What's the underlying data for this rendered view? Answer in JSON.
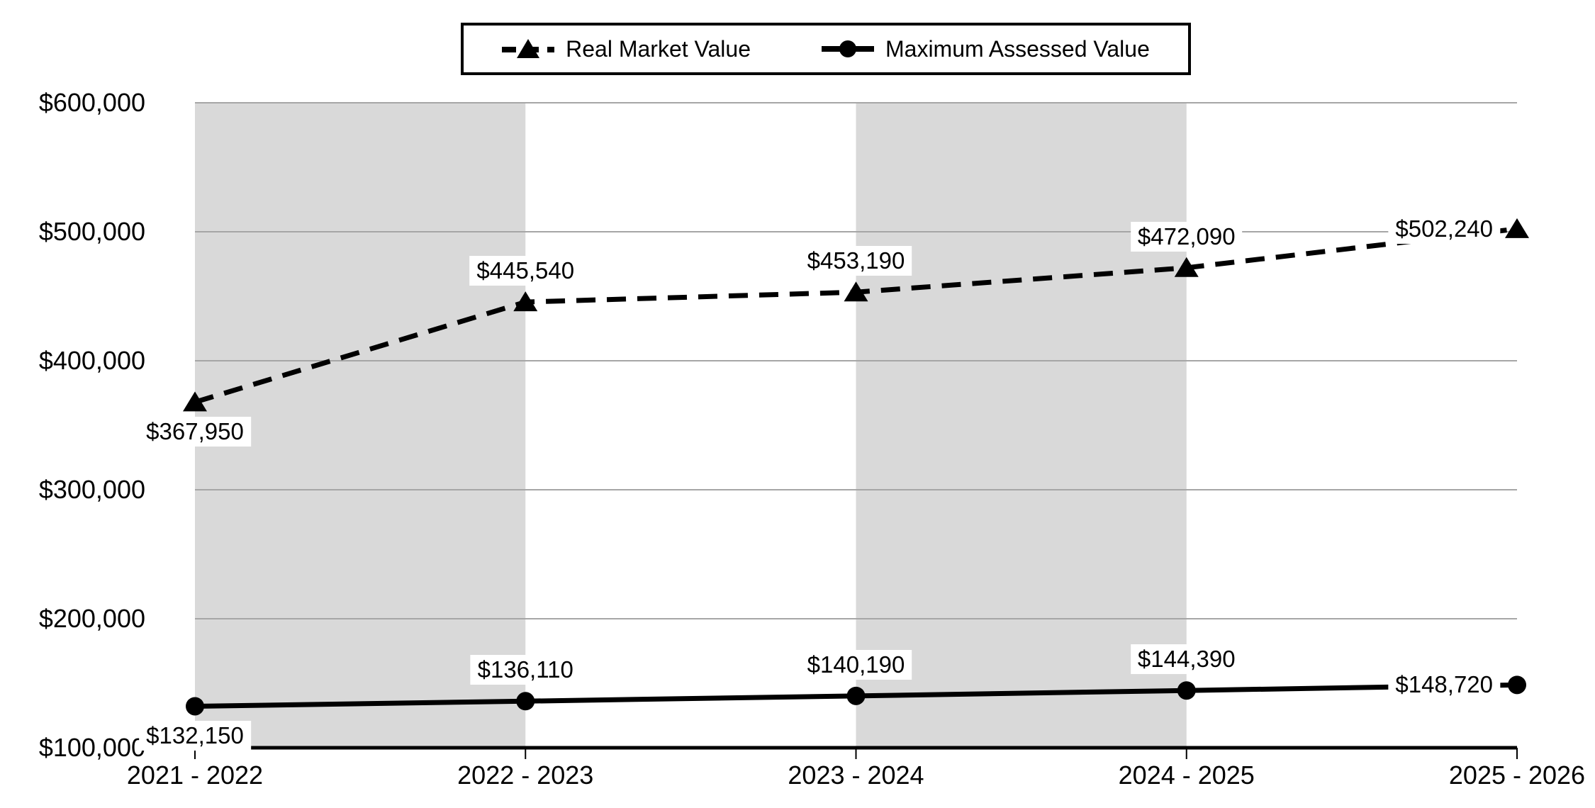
{
  "chart_data": {
    "type": "line",
    "categories": [
      "2021 - 2022",
      "2022 - 2023",
      "2023 - 2024",
      "2024 - 2025",
      "2025 - 2026"
    ],
    "series": [
      {
        "name": "Real Market Value",
        "line_style": "dashed",
        "marker": "triangle",
        "values": [
          367950,
          445540,
          453190,
          472090,
          502240
        ],
        "labels": [
          "$367,950",
          "$445,540",
          "$453,190",
          "$472,090",
          "$502,240"
        ],
        "label_positions": [
          "below",
          "above",
          "above",
          "above",
          "left"
        ]
      },
      {
        "name": "Maximum Assessed Value",
        "line_style": "solid",
        "marker": "circle",
        "values": [
          132150,
          136110,
          140190,
          144390,
          148720
        ],
        "labels": [
          "$132,150",
          "$136,110",
          "$140,190",
          "$144,390",
          "$148,720"
        ],
        "label_positions": [
          "below",
          "above",
          "above",
          "above",
          "left"
        ]
      }
    ],
    "y_axis": {
      "min": 100000,
      "max": 600000,
      "step": 100000,
      "tick_labels": [
        "$100,000",
        "$200,000",
        "$300,000",
        "$400,000",
        "$500,000",
        "$600,000"
      ]
    },
    "ylim": [
      100000,
      600000
    ],
    "grid": true,
    "legend_position": "top",
    "shaded_bands": [
      {
        "from_category_index": 0,
        "to_category_index": 1
      },
      {
        "from_category_index": 2,
        "to_category_index": 3
      }
    ],
    "colors": {
      "series": "#000000",
      "grid": "#a6a6a6",
      "band": "#d9d9d9",
      "background": "#ffffff",
      "label_background": "#ffffff",
      "text": "#000000"
    }
  }
}
